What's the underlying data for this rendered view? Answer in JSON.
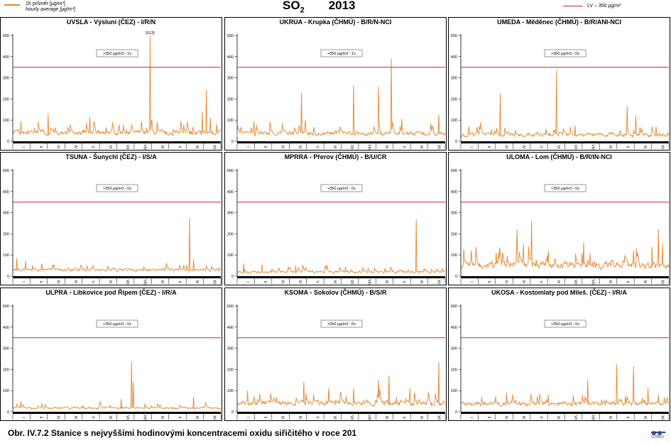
{
  "header": {
    "legend_left_line1": "1h průměr [μg/m³]",
    "legend_left_line2": "hourly average [μg/m³]",
    "title_pollutant": "SO",
    "title_subscript": "2",
    "title_year": "2013",
    "legend_right": "LV – 350 μg/m³"
  },
  "caption": "Obr. IV.7.2  Stanice s nejvyššími hodinovými koncentracemi oxidu siřičitého v roce 201",
  "logo": {
    "text": "ČHMÚ"
  },
  "colors": {
    "series": "#e8852c",
    "limit": "#c0282d",
    "axis_band": "#000000"
  },
  "chart_data": [
    {
      "type": "line",
      "title": "UVSLA - Výsluní (ČEZ) - I/R/N",
      "yticks": [
        0,
        100,
        200,
        300,
        400,
        500
      ],
      "ylim": [
        0,
        500
      ],
      "months": [
        "I",
        "II",
        "III",
        "IV",
        "V",
        "VI",
        "VII",
        "VIII",
        "IX",
        "X",
        "XI",
        "XII"
      ],
      "limit_value": 350,
      "annotation": ">350 μg/m3 - 1x",
      "peak_label": "[513]",
      "series": {
        "base": 22,
        "noise": 38,
        "spikes": [
          [
            0.04,
            95
          ],
          [
            0.17,
            130
          ],
          [
            0.37,
            115
          ],
          [
            0.66,
            513
          ],
          [
            0.91,
            140
          ],
          [
            0.93,
            245
          ],
          [
            0.95,
            110
          ],
          [
            0.98,
            80
          ]
        ]
      }
    },
    {
      "type": "line",
      "title": "UKRUA - Krupka (ČHMÚ) - B/R/N-NCI",
      "yticks": [
        0,
        100,
        200,
        300,
        400,
        500
      ],
      "ylim": [
        0,
        500
      ],
      "months": [
        "I",
        "II",
        "III",
        "IV",
        "V",
        "VI",
        "VII",
        "VIII",
        "IX",
        "X",
        "XI",
        "XII"
      ],
      "limit_value": 350,
      "annotation": ">350 μg/m3 - 1x",
      "series": {
        "base": 20,
        "noise": 35,
        "spikes": [
          [
            0.08,
            95
          ],
          [
            0.31,
            230
          ],
          [
            0.33,
            100
          ],
          [
            0.56,
            265
          ],
          [
            0.68,
            260
          ],
          [
            0.74,
            390
          ],
          [
            0.79,
            105
          ],
          [
            0.97,
            125
          ]
        ]
      }
    },
    {
      "type": "line",
      "title": "UMEDA - Měděnec (ČHMÚ) - B/R/ANI-NCI",
      "yticks": [
        0,
        100,
        200,
        300,
        400,
        500
      ],
      "ylim": [
        0,
        500
      ],
      "months": [
        "I",
        "II",
        "III",
        "IV",
        "V",
        "VI",
        "VII",
        "VIII",
        "IX",
        "X",
        "XI",
        "XII"
      ],
      "limit_value": 350,
      "annotation": ">350 μg/m3 - 0x",
      "series": {
        "base": 15,
        "noise": 30,
        "spikes": [
          [
            0.04,
            70
          ],
          [
            0.19,
            225
          ],
          [
            0.46,
            335
          ],
          [
            0.55,
            75
          ],
          [
            0.8,
            165
          ],
          [
            0.84,
            120
          ],
          [
            0.94,
            70
          ]
        ]
      }
    },
    {
      "type": "line",
      "title": "TSUNA - Šunychl (ČEZ) - I/S/A",
      "yticks": [
        0,
        100,
        200,
        300,
        400,
        500
      ],
      "ylim": [
        0,
        500
      ],
      "months": [
        "I",
        "II",
        "III",
        "IV",
        "V",
        "VI",
        "VII",
        "VIII",
        "IX",
        "X",
        "XI",
        "XII"
      ],
      "limit_value": 350,
      "annotation": ">350 μg/m3 - 0x",
      "series": {
        "base": 18,
        "noise": 22,
        "spikes": [
          [
            0.02,
            85
          ],
          [
            0.06,
            70
          ],
          [
            0.14,
            60
          ],
          [
            0.85,
            275
          ],
          [
            0.87,
            80
          ]
        ]
      }
    },
    {
      "type": "line",
      "title": "MPRRA - Přerov (ČHMÚ) - B/U/CR",
      "yticks": [
        0,
        100,
        200,
        300,
        400,
        500
      ],
      "ylim": [
        0,
        500
      ],
      "months": [
        "I",
        "II",
        "III",
        "IV",
        "V",
        "VI",
        "VII",
        "VIII",
        "IX",
        "X",
        "XI",
        "XII"
      ],
      "limit_value": 350,
      "annotation": ">350 μg/m3 - 0x",
      "series": {
        "base": 10,
        "noise": 20,
        "spikes": [
          [
            0.03,
            60
          ],
          [
            0.12,
            55
          ],
          [
            0.28,
            50
          ],
          [
            0.52,
            45
          ],
          [
            0.86,
            270
          ]
        ]
      }
    },
    {
      "type": "line",
      "title": "ULOMA - Lom (ČHMÚ) - B/R/IN-NCI",
      "yticks": [
        0,
        100,
        200,
        300,
        400,
        500
      ],
      "ylim": [
        0,
        500
      ],
      "months": [
        "I",
        "II",
        "III",
        "IV",
        "V",
        "VI",
        "VII",
        "VIII",
        "IX",
        "X",
        "XI",
        "XII"
      ],
      "limit_value": 350,
      "annotation": ">350 μg/m3 - 0x",
      "series": {
        "base": 25,
        "noise": 55,
        "spikes": [
          [
            0.05,
            120
          ],
          [
            0.17,
            110
          ],
          [
            0.27,
            220
          ],
          [
            0.3,
            150
          ],
          [
            0.34,
            260
          ],
          [
            0.42,
            120
          ],
          [
            0.59,
            160
          ],
          [
            0.62,
            110
          ],
          [
            0.83,
            120
          ],
          [
            0.92,
            140
          ],
          [
            0.95,
            220
          ],
          [
            0.97,
            150
          ]
        ]
      }
    },
    {
      "type": "line",
      "title": "ULPRA - Libkovice pod Řípem (ČEZ) - I/R/A",
      "yticks": [
        0,
        100,
        200,
        300,
        400,
        500
      ],
      "ylim": [
        0,
        500
      ],
      "months": [
        "I",
        "II",
        "III",
        "IV",
        "V",
        "VI",
        "VII",
        "VIII",
        "IX",
        "X",
        "XI",
        "XII"
      ],
      "limit_value": 350,
      "annotation": ">350 μg/m3 - 0x",
      "series": {
        "base": 10,
        "noise": 15,
        "spikes": [
          [
            0.04,
            50
          ],
          [
            0.5,
            80
          ],
          [
            0.52,
            60
          ],
          [
            0.57,
            240
          ],
          [
            0.58,
            140
          ],
          [
            0.87,
            70
          ]
        ]
      }
    },
    {
      "type": "line",
      "title": "KSOMA - Sokolov (ČHMÚ) - B/S/R",
      "yticks": [
        0,
        100,
        200,
        300,
        400,
        500
      ],
      "ylim": [
        0,
        500
      ],
      "months": [
        "I",
        "II",
        "III",
        "IV",
        "V",
        "VI",
        "VII",
        "VIII",
        "IX",
        "X",
        "XI",
        "XII"
      ],
      "limit_value": 350,
      "annotation": ">350 μg/m3 - 0x",
      "series": {
        "base": 20,
        "noise": 40,
        "spikes": [
          [
            0.05,
            100
          ],
          [
            0.32,
            140
          ],
          [
            0.44,
            110
          ],
          [
            0.56,
            110
          ],
          [
            0.68,
            150
          ],
          [
            0.73,
            170
          ],
          [
            0.83,
            110
          ],
          [
            0.97,
            235
          ]
        ]
      }
    },
    {
      "type": "line",
      "title": "UKOSA - Kostomlaty pod Mileš. (ČEZ) - I/R/A",
      "yticks": [
        0,
        100,
        200,
        300,
        400,
        500
      ],
      "ylim": [
        0,
        500
      ],
      "months": [
        "I",
        "II",
        "III",
        "IV",
        "V",
        "VI",
        "VII",
        "VIII",
        "IX",
        "X",
        "XI",
        "XII"
      ],
      "limit_value": 350,
      "annotation": ">350 μg/m3 - 0x",
      "series": {
        "base": 20,
        "noise": 35,
        "spikes": [
          [
            0.1,
            70
          ],
          [
            0.22,
            90
          ],
          [
            0.42,
            80
          ],
          [
            0.61,
            150
          ],
          [
            0.75,
            225
          ],
          [
            0.83,
            215
          ],
          [
            0.9,
            110
          ],
          [
            0.95,
            80
          ]
        ]
      }
    }
  ]
}
